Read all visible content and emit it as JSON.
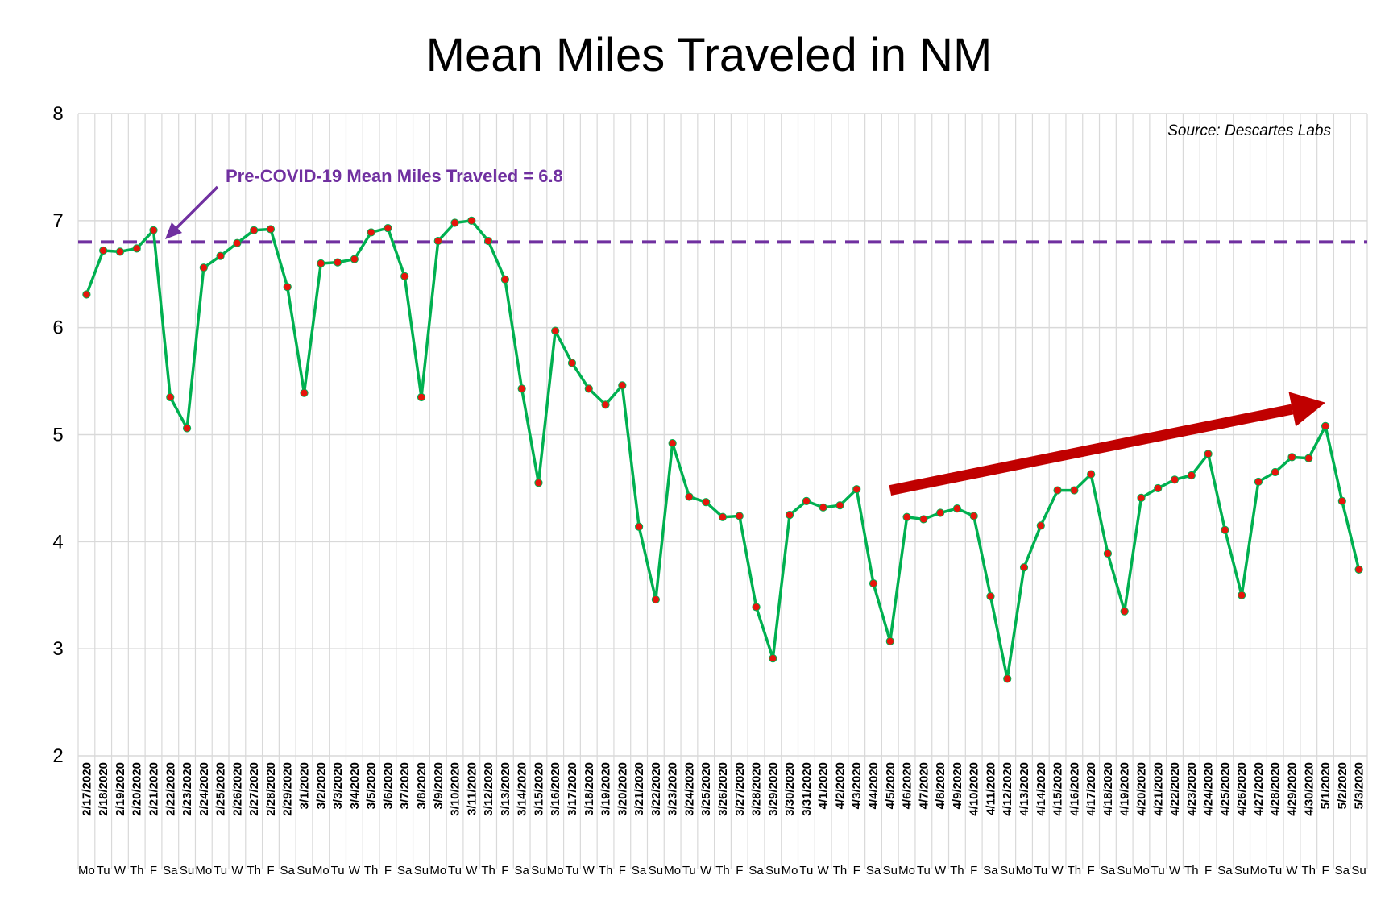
{
  "chart_data": {
    "type": "line",
    "title": "Mean Miles Traveled in NM",
    "source_note": "Source: Descartes Labs",
    "xlabel": "",
    "ylabel": "",
    "ylim": [
      2,
      8
    ],
    "yticks": [
      "2",
      "3",
      "4",
      "5",
      "6",
      "7",
      "8"
    ],
    "grid": true,
    "categories": [
      "2/17/2020",
      "2/18/2020",
      "2/19/2020",
      "2/20/2020",
      "2/21/2020",
      "2/22/2020",
      "2/23/2020",
      "2/24/2020",
      "2/25/2020",
      "2/26/2020",
      "2/27/2020",
      "2/28/2020",
      "2/29/2020",
      "3/1/2020",
      "3/2/2020",
      "3/3/2020",
      "3/4/2020",
      "3/5/2020",
      "3/6/2020",
      "3/7/2020",
      "3/8/2020",
      "3/9/2020",
      "3/10/2020",
      "3/11/2020",
      "3/12/2020",
      "3/13/2020",
      "3/14/2020",
      "3/15/2020",
      "3/16/2020",
      "3/17/2020",
      "3/18/2020",
      "3/19/2020",
      "3/20/2020",
      "3/21/2020",
      "3/22/2020",
      "3/23/2020",
      "3/24/2020",
      "3/25/2020",
      "3/26/2020",
      "3/27/2020",
      "3/28/2020",
      "3/29/2020",
      "3/30/2020",
      "3/31/2020",
      "4/1/2020",
      "4/2/2020",
      "4/3/2020",
      "4/4/2020",
      "4/5/2020",
      "4/6/2020",
      "4/7/2020",
      "4/8/2020",
      "4/9/2020",
      "4/10/2020",
      "4/11/2020",
      "4/12/2020",
      "4/13/2020",
      "4/14/2020",
      "4/15/2020",
      "4/16/2020",
      "4/17/2020",
      "4/18/2020",
      "4/19/2020",
      "4/20/2020",
      "4/21/2020",
      "4/22/2020",
      "4/23/2020",
      "4/24/2020",
      "4/25/2020",
      "4/26/2020",
      "4/27/2020",
      "4/28/2020",
      "4/29/2020",
      "4/30/2020",
      "5/1/2020",
      "5/2/2020",
      "5/3/2020"
    ],
    "days": [
      "Mo",
      "Tu",
      "W",
      "Th",
      "F",
      "Sa",
      "Su",
      "Mo",
      "Tu",
      "W",
      "Th",
      "F",
      "Sa",
      "Su",
      "Mo",
      "Tu",
      "W",
      "Th",
      "F",
      "Sa",
      "Su",
      "Mo",
      "Tu",
      "W",
      "Th",
      "F",
      "Sa",
      "Su",
      "Mo",
      "Tu",
      "W",
      "Th",
      "F",
      "Sa",
      "Su",
      "Mo",
      "Tu",
      "W",
      "Th",
      "F",
      "Sa",
      "Su",
      "Mo",
      "Tu",
      "W",
      "Th",
      "F",
      "Sa",
      "Su",
      "Mo",
      "Tu",
      "W",
      "Th",
      "F",
      "Sa",
      "Su",
      "Mo",
      "Tu",
      "W",
      "Th",
      "F",
      "Sa",
      "Su",
      "Mo",
      "Tu",
      "W",
      "Th",
      "F",
      "Sa",
      "Su",
      "Mo",
      "Tu",
      "W",
      "Th",
      "F",
      "Sa",
      "Su"
    ],
    "series": [
      {
        "values": [
          6.31,
          6.72,
          6.71,
          6.74,
          6.91,
          5.35,
          5.06,
          6.56,
          6.67,
          6.79,
          6.91,
          6.92,
          6.38,
          5.39,
          6.6,
          6.61,
          6.64,
          6.89,
          6.93,
          6.48,
          5.35,
          6.81,
          6.98,
          7.0,
          6.81,
          6.45,
          5.43,
          4.55,
          5.97,
          5.67,
          5.43,
          5.28,
          5.46,
          4.14,
          3.46,
          4.92,
          4.42,
          4.37,
          4.23,
          4.24,
          3.39,
          2.91,
          4.25,
          4.38,
          4.32,
          4.34,
          4.49,
          3.61,
          3.07,
          4.23,
          4.21,
          4.27,
          4.31,
          4.24,
          3.49,
          2.72,
          3.76,
          4.15,
          4.48,
          4.48,
          4.63,
          3.89,
          3.35,
          4.41,
          4.5,
          4.58,
          4.62,
          4.82,
          4.11,
          3.5,
          4.56,
          4.65,
          4.79,
          4.78,
          5.08,
          4.38,
          3.74
        ],
        "color": "#00b050",
        "marker_color": "#e8140c"
      }
    ],
    "reference_line": {
      "value": 6.8,
      "label": "Pre-COVID-19 Mean Miles Traveled = 6.8",
      "color": "#7030a0"
    },
    "trend_arrow": {
      "color": "#c00000",
      "from": {
        "x": "4/5/2020",
        "y": 4.48
      },
      "to": {
        "x": "5/1/2020",
        "y": 5.3
      }
    }
  }
}
